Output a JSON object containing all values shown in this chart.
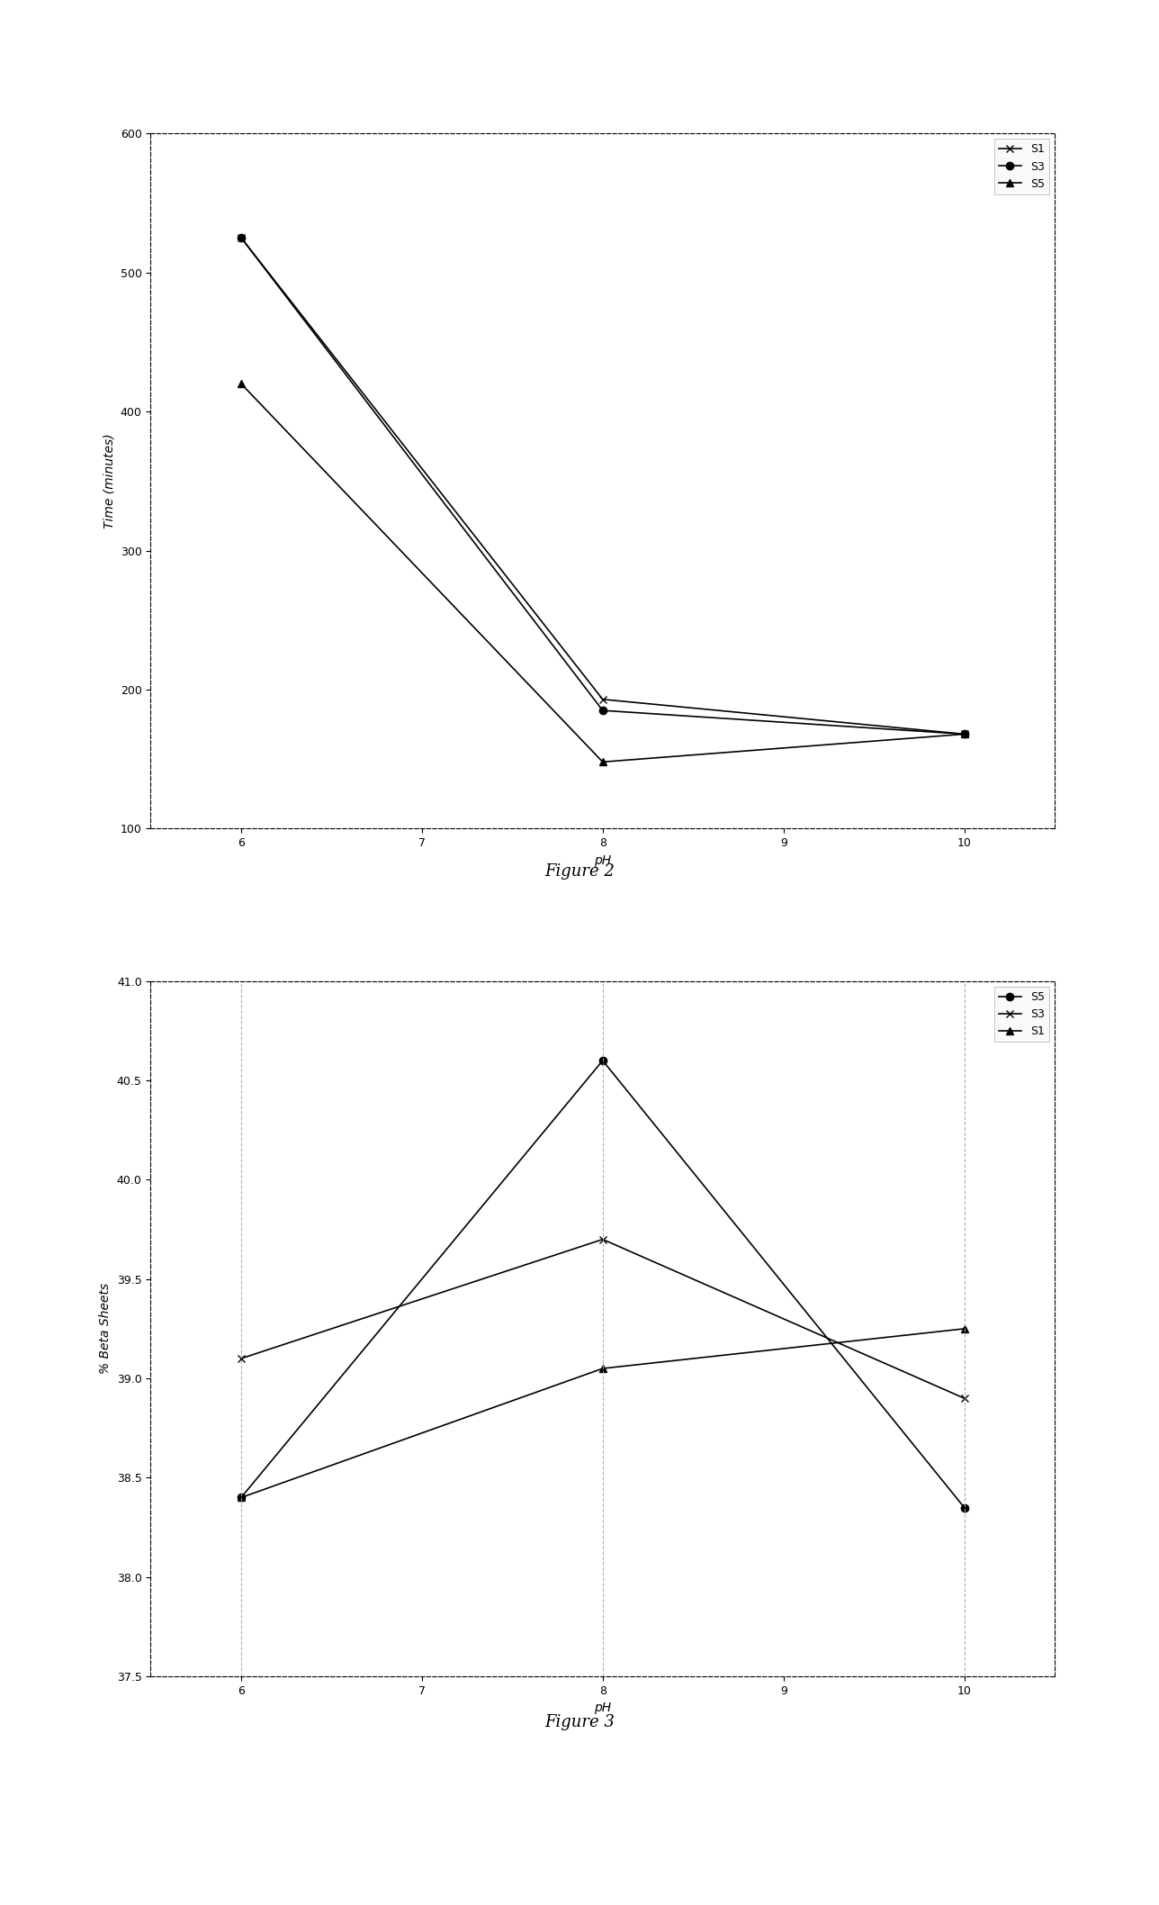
{
  "fig2": {
    "xlabel": "pH",
    "ylabel": "Time (minutes)",
    "ylim": [
      100,
      600
    ],
    "yticks": [
      100,
      200,
      300,
      400,
      500,
      600
    ],
    "xlim": [
      5.5,
      10.5
    ],
    "xticks": [
      6,
      7,
      8,
      9,
      10
    ],
    "series": [
      {
        "label": "S1",
        "x": [
          6,
          8,
          10
        ],
        "y": [
          525,
          193,
          168
        ],
        "color": "#000000",
        "marker": "x",
        "linestyle": "-"
      },
      {
        "label": "S3",
        "x": [
          6,
          8,
          10
        ],
        "y": [
          525,
          185,
          168
        ],
        "color": "#000000",
        "marker": "o",
        "linestyle": "-"
      },
      {
        "label": "S5",
        "x": [
          6,
          8,
          10
        ],
        "y": [
          420,
          148,
          168
        ],
        "color": "#000000",
        "marker": "^",
        "linestyle": "-"
      }
    ],
    "caption": "Figure 2"
  },
  "fig3": {
    "xlabel": "pH",
    "ylabel": "% Beta Sheets",
    "ylim": [
      37.5,
      41.0
    ],
    "yticks": [
      37.5,
      38.0,
      38.5,
      39.0,
      39.5,
      40.0,
      40.5,
      41.0
    ],
    "xlim": [
      5.5,
      10.5
    ],
    "xticks": [
      6,
      7,
      8,
      9,
      10
    ],
    "series": [
      {
        "label": "S5",
        "x": [
          6,
          8,
          10
        ],
        "y": [
          38.4,
          40.6,
          38.35
        ],
        "color": "#000000",
        "marker": "o",
        "linestyle": "-"
      },
      {
        "label": "S3",
        "x": [
          6,
          8,
          10
        ],
        "y": [
          39.1,
          39.7,
          38.9
        ],
        "color": "#000000",
        "marker": "x",
        "linestyle": "-"
      },
      {
        "label": "S1",
        "x": [
          6,
          8,
          10
        ],
        "y": [
          38.4,
          39.05,
          39.25
        ],
        "color": "#000000",
        "marker": "^",
        "linestyle": "-"
      }
    ],
    "vlines": [
      6,
      8,
      10
    ],
    "caption": "Figure 3"
  },
  "background_color": "#ffffff",
  "font_size": 10,
  "tick_font_size": 9,
  "legend_font_size": 9,
  "caption_fontsize": 13
}
